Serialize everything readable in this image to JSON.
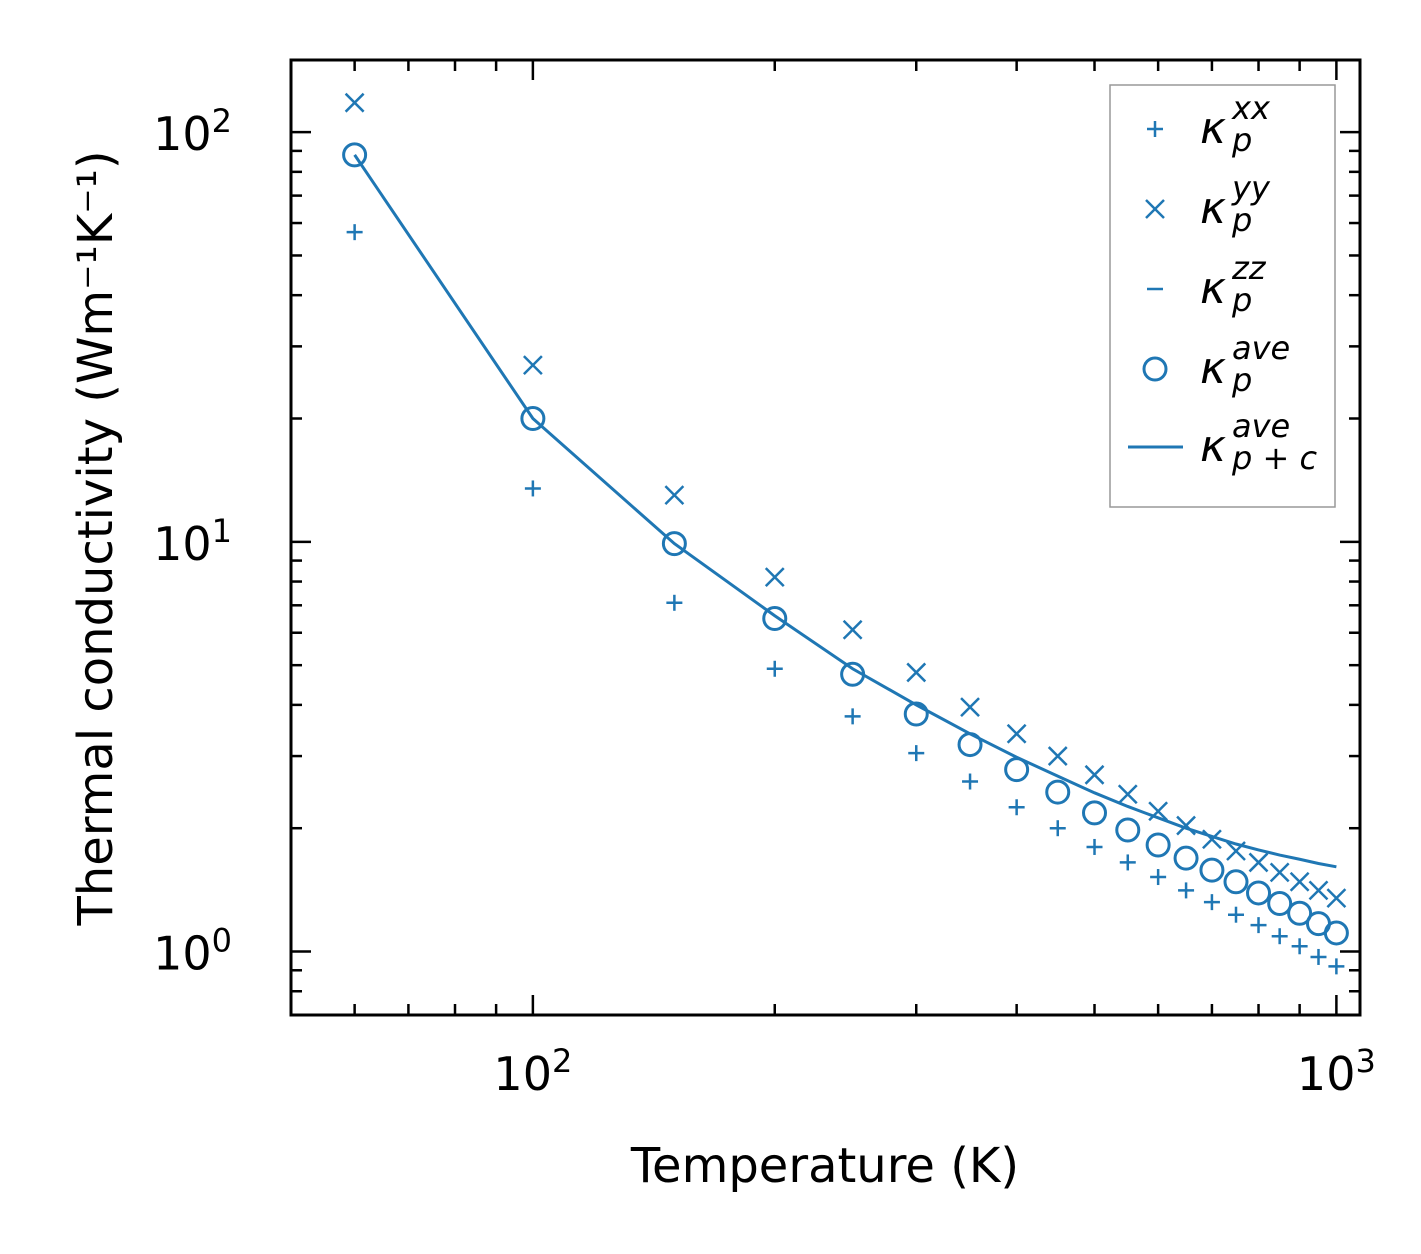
{
  "chart_data": {
    "type": "scatter",
    "title": "",
    "xlabel": "Temperature (K)",
    "ylabel": "Thermal conductivity (Wm⁻¹K⁻¹)",
    "xscale": "log",
    "yscale": "log",
    "xlim": [
      50,
      1070
    ],
    "ylim": [
      0.7,
      150
    ],
    "xticks": [
      {
        "base": "10",
        "exp": "2"
      },
      {
        "base": "10",
        "exp": "3"
      }
    ],
    "yticks": [
      {
        "base": "10",
        "exp": "0"
      },
      {
        "base": "10",
        "exp": "1"
      },
      {
        "base": "10",
        "exp": "2"
      }
    ],
    "x": [
      60,
      100,
      150,
      200,
      250,
      300,
      350,
      400,
      450,
      500,
      550,
      600,
      650,
      700,
      750,
      800,
      850,
      900,
      950,
      1000
    ],
    "series": [
      {
        "name": "kappa_p^xx",
        "marker": "plus",
        "values": [
          57,
          13.5,
          7.1,
          4.9,
          3.75,
          3.05,
          2.6,
          2.25,
          2.0,
          1.8,
          1.65,
          1.52,
          1.41,
          1.32,
          1.23,
          1.16,
          1.09,
          1.03,
          0.97,
          0.92
        ]
      },
      {
        "name": "kappa_p^yy",
        "marker": "x",
        "values": [
          118,
          27,
          13,
          8.2,
          6.1,
          4.8,
          3.95,
          3.4,
          3.0,
          2.7,
          2.42,
          2.2,
          2.03,
          1.88,
          1.76,
          1.65,
          1.56,
          1.48,
          1.41,
          1.35
        ]
      },
      {
        "name": "kappa_p^zz",
        "marker": "hline",
        "values": []
      },
      {
        "name": "kappa_p^ave",
        "marker": "circle",
        "values": [
          88,
          20,
          9.9,
          6.5,
          4.75,
          3.8,
          3.2,
          2.78,
          2.45,
          2.18,
          1.98,
          1.82,
          1.69,
          1.58,
          1.48,
          1.39,
          1.31,
          1.24,
          1.17,
          1.11
        ]
      },
      {
        "name": "kappa_p+c^ave",
        "marker": "line",
        "values": [
          88,
          20,
          9.9,
          6.6,
          4.9,
          4.0,
          3.4,
          2.98,
          2.68,
          2.44,
          2.26,
          2.12,
          2.0,
          1.91,
          1.83,
          1.77,
          1.72,
          1.68,
          1.64,
          1.61
        ]
      }
    ],
    "legend": {
      "position": "top-right",
      "entries": [
        {
          "symbol": "κ",
          "sub": "p",
          "sup": "xx"
        },
        {
          "symbol": "κ",
          "sub": "p",
          "sup": "yy"
        },
        {
          "symbol": "κ",
          "sub": "p",
          "sup": "zz"
        },
        {
          "symbol": "κ",
          "sub": "p",
          "sup": "ave"
        },
        {
          "symbol": "κ",
          "sub": "p + c",
          "sup": "ave"
        }
      ]
    },
    "color": "#1f77b4"
  }
}
